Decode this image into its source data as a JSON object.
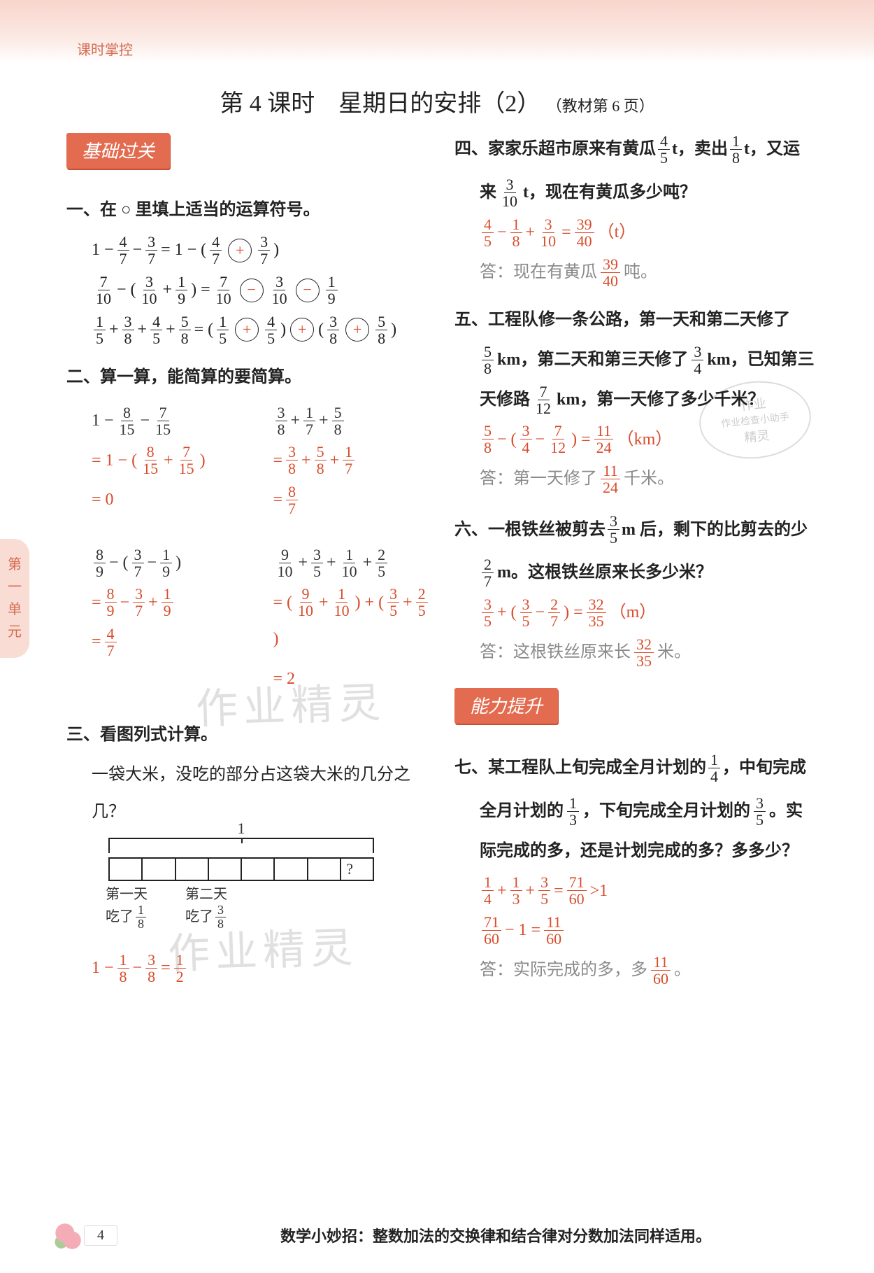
{
  "colors": {
    "accent": "#e36b4f",
    "answer": "#d84c2c",
    "header_text": "#d56b52",
    "grey": "#8a8a8a",
    "text": "#333333",
    "bg": "#ffffff",
    "gradient_top": "#f8d5cc"
  },
  "header": {
    "label": "课时掌控"
  },
  "side_tab": "第一单元",
  "title": {
    "main": "第 4 课时　星期日的安排（2）",
    "sub": "（教材第 6 页）"
  },
  "badges": {
    "basic": "基础过关",
    "improve": "能力提升"
  },
  "q1": {
    "head": "一、在 ○ 里填上适当的运算符号。",
    "row1": {
      "lhs_pre": "1 −",
      "f1": [
        "4",
        "7"
      ],
      "minus": "−",
      "f2": [
        "3",
        "7"
      ],
      "eq": "= 1 − (",
      "f3": [
        "4",
        "7"
      ],
      "op": "+",
      "f4": [
        "3",
        "7"
      ],
      "close": ")"
    },
    "row2": {
      "f1": [
        "7",
        "10"
      ],
      "minus1": "− (",
      "f2": [
        "3",
        "10"
      ],
      "plus": "+",
      "f3": [
        "1",
        "9"
      ],
      "close": ") =",
      "f4": [
        "7",
        "10"
      ],
      "op1": "−",
      "f5": [
        "3",
        "10"
      ],
      "op2": "−",
      "f6": [
        "1",
        "9"
      ]
    },
    "row3": {
      "f1": [
        "1",
        "5"
      ],
      "p1": "+",
      "f2": [
        "3",
        "8"
      ],
      "p2": "+",
      "f3": [
        "4",
        "5"
      ],
      "p3": "+",
      "f4": [
        "5",
        "8"
      ],
      "eq": "= (",
      "f5": [
        "1",
        "5"
      ],
      "op1": "+",
      "f6": [
        "4",
        "5"
      ],
      "close1": ")",
      "op_mid": "+",
      "open2": "(",
      "f7": [
        "3",
        "8"
      ],
      "op2": "+",
      "f8": [
        "5",
        "8"
      ],
      "close2": ")"
    }
  },
  "q2": {
    "head": "二、算一算，能简算的要简算。",
    "c1a": {
      "l1_pre": "1 −",
      "l1_f1": [
        "8",
        "15"
      ],
      "l1_m": "−",
      "l1_f2": [
        "7",
        "15"
      ],
      "l2_pre": "= 1 − (",
      "l2_f1": [
        "8",
        "15"
      ],
      "l2_p": "+",
      "l2_f2": [
        "7",
        "15"
      ],
      "l2_close": ")",
      "l3": "= 0"
    },
    "c1b": {
      "l1_f1": [
        "3",
        "8"
      ],
      "l1_p1": "+",
      "l1_f2": [
        "1",
        "7"
      ],
      "l1_p2": "+",
      "l1_f3": [
        "5",
        "8"
      ],
      "l2_pre": "= ",
      "l2_f1": [
        "3",
        "8"
      ],
      "l2_p1": "+",
      "l2_f2": [
        "5",
        "8"
      ],
      "l2_p2": "+",
      "l2_f3": [
        "1",
        "7"
      ],
      "l3_pre": "= ",
      "l3_f": [
        "8",
        "7"
      ]
    },
    "c2a": {
      "l1_f1": [
        "8",
        "9"
      ],
      "l1_pre": "− (",
      "l1_f2": [
        "3",
        "7"
      ],
      "l1_m": "−",
      "l1_f3": [
        "1",
        "9"
      ],
      "l1_close": ")",
      "l2_pre": "= ",
      "l2_f1": [
        "8",
        "9"
      ],
      "l2_m1": "−",
      "l2_f2": [
        "3",
        "7"
      ],
      "l2_p": "+",
      "l2_f3": [
        "1",
        "9"
      ],
      "l3_pre": "= ",
      "l3_f": [
        "4",
        "7"
      ]
    },
    "c2b": {
      "l1_f1": [
        "9",
        "10"
      ],
      "l1_p1": "+",
      "l1_f2": [
        "3",
        "5"
      ],
      "l1_p2": "+",
      "l1_f3": [
        "1",
        "10"
      ],
      "l1_p3": "+",
      "l1_f4": [
        "2",
        "5"
      ],
      "l2_pre": "= (",
      "l2_f1": [
        "9",
        "10"
      ],
      "l2_p1": "+",
      "l2_f2": [
        "1",
        "10"
      ],
      "l2_close1": ") + (",
      "l2_f3": [
        "3",
        "5"
      ],
      "l2_p2": "+",
      "l2_f4": [
        "2",
        "5"
      ],
      "l2_close2": ")",
      "l3": "= 2"
    }
  },
  "q3": {
    "head": "三、看图列式计算。",
    "text": "一袋大米，没吃的部分占这袋大米的几分之几？",
    "diagram": {
      "total_label": "1",
      "segments": 8,
      "seg1_span": 1,
      "seg2_span": 3,
      "d1_l1": "第一天",
      "d1_l2": "吃了",
      "d1_f": [
        "1",
        "8"
      ],
      "d2_l1": "第二天",
      "d2_l2": "吃了",
      "d2_f": [
        "3",
        "8"
      ],
      "qmark": "?"
    },
    "ans_pre": "1 −",
    "ans_f1": [
      "1",
      "8"
    ],
    "ans_m": "−",
    "ans_f2": [
      "3",
      "8"
    ],
    "ans_eq": "=",
    "ans_r": [
      "1",
      "2"
    ]
  },
  "q4": {
    "head_pre": "四、家家乐超市原来有黄瓜",
    "f1": [
      "4",
      "5"
    ],
    "t1": " t，卖出",
    "f2": [
      "1",
      "8"
    ],
    "t2": " t，又运",
    "line2_pre": "来",
    "f3": [
      "3",
      "10"
    ],
    "t3": " t，现在有黄瓜多少吨？",
    "ans_f1": [
      "4",
      "5"
    ],
    "m1": "−",
    "ans_f2": [
      "1",
      "8"
    ],
    "p": "+",
    "ans_f3": [
      "3",
      "10"
    ],
    "eq": "=",
    "ans_r": [
      "39",
      "40"
    ],
    "unit": "（t）",
    "answer_pre": "答：现在有黄瓜",
    "answer_f": [
      "39",
      "40"
    ],
    "answer_suf": "吨。"
  },
  "q5": {
    "head": "五、工程队修一条公路，第一天和第二天修了",
    "l2_f1": [
      "5",
      "8"
    ],
    "l2_t1": " km，第二天和第三天修了",
    "l2_f2": [
      "3",
      "4"
    ],
    "l2_t2": " km，已知第三",
    "l3_pre": "天修路",
    "l3_f": [
      "7",
      "12"
    ],
    "l3_t": " km，第一天修了多少千米？",
    "ans_f1": [
      "5",
      "8"
    ],
    "m1": "− (",
    "ans_f2": [
      "3",
      "4"
    ],
    "m2": "−",
    "ans_f3": [
      "7",
      "12"
    ],
    "close": ") =",
    "ans_r": [
      "11",
      "24"
    ],
    "unit": "（km）",
    "answer_pre": "答：第一天修了",
    "answer_f": [
      "11",
      "24"
    ],
    "answer_suf": "千米。"
  },
  "q6": {
    "head_pre": "六、一根铁丝被剪去",
    "f1": [
      "3",
      "5"
    ],
    "t1": " m 后，剩下的比剪去的少",
    "l2_f": [
      "2",
      "7"
    ],
    "l2_t": " m。这根铁丝原来长多少米？",
    "ans_f1": [
      "3",
      "5"
    ],
    "p": "+ (",
    "ans_f2": [
      "3",
      "5"
    ],
    "m": "−",
    "ans_f3": [
      "2",
      "7"
    ],
    "close": ") =",
    "ans_r": [
      "32",
      "35"
    ],
    "unit": "（m）",
    "answer_pre": "答：这根铁丝原来长",
    "answer_f": [
      "32",
      "35"
    ],
    "answer_suf": "米。"
  },
  "q7": {
    "head_pre": "七、某工程队上旬完成全月计划的",
    "f1": [
      "1",
      "4"
    ],
    "t1": "，中旬完成",
    "l2_pre": "全月计划的",
    "f2": [
      "1",
      "3"
    ],
    "t2": "，下旬完成全月计划的",
    "f3": [
      "3",
      "5"
    ],
    "t3": "。实",
    "l3": "际完成的多，还是计划完成的多？多多少？",
    "a1_f1": [
      "1",
      "4"
    ],
    "p1": "+",
    "a1_f2": [
      "1",
      "3"
    ],
    "p2": "+",
    "a1_f3": [
      "3",
      "5"
    ],
    "eq": "=",
    "a1_r": [
      "71",
      "60"
    ],
    "gt": ">1",
    "a2_f1": [
      "71",
      "60"
    ],
    "m": "− 1 =",
    "a2_r": [
      "11",
      "60"
    ],
    "answer_pre": "答：实际完成的多，多",
    "answer_f": [
      "11",
      "60"
    ],
    "answer_suf": "。"
  },
  "footer": {
    "page": "4",
    "tip": "数学小妙招：整数加法的交换律和结合律对分数加法同样适用。"
  },
  "watermarks": [
    "作业精灵",
    "作业精灵"
  ],
  "stamp": {
    "l1": "作业",
    "l2": "作业检查小助手",
    "l3": "精灵"
  }
}
